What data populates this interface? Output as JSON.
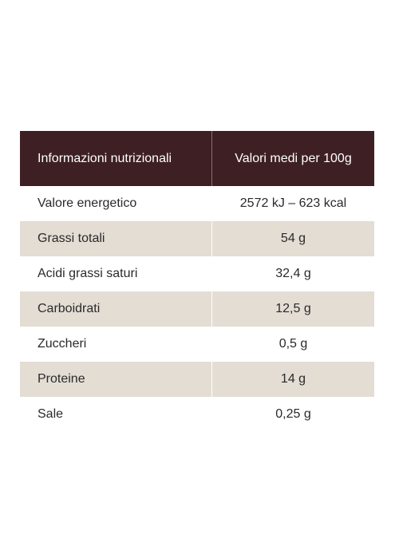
{
  "table": {
    "header": {
      "label": "Informazioni nutrizionali",
      "value": "Valori medi per 100g"
    },
    "rows": [
      {
        "label": "Valore energetico",
        "value": "2572 kJ – 623 kcal"
      },
      {
        "label": "Grassi totali",
        "value": "54 g"
      },
      {
        "label": "Acidi grassi saturi",
        "value": "32,4 g"
      },
      {
        "label": "Carboidrati",
        "value": "12,5 g"
      },
      {
        "label": "Zuccheri",
        "value": "0,5 g"
      },
      {
        "label": "Proteine",
        "value": "14 g"
      },
      {
        "label": "Sale",
        "value": "0,25 g"
      }
    ]
  },
  "colors": {
    "header_bg": "#3e2024",
    "shaded_row_bg": "#e3ddd4",
    "text": "#2a2a2a"
  }
}
